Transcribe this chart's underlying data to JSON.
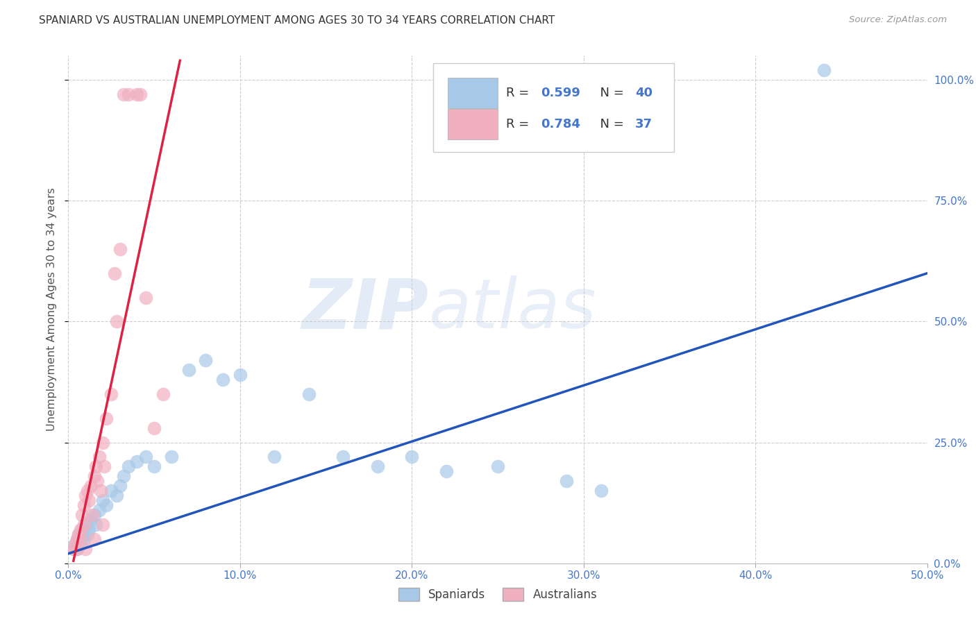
{
  "title": "SPANIARD VS AUSTRALIAN UNEMPLOYMENT AMONG AGES 30 TO 34 YEARS CORRELATION CHART",
  "source": "Source: ZipAtlas.com",
  "ylabel": "Unemployment Among Ages 30 to 34 years",
  "xlim": [
    0.0,
    0.5
  ],
  "ylim": [
    0.0,
    1.05
  ],
  "xticks": [
    0.0,
    0.1,
    0.2,
    0.3,
    0.4,
    0.5
  ],
  "xticklabels": [
    "0.0%",
    "10.0%",
    "20.0%",
    "30.0%",
    "40.0%",
    "50.0%"
  ],
  "yticks_right": [
    0.0,
    0.25,
    0.5,
    0.75,
    1.0
  ],
  "yticklabels_right": [
    "0.0%",
    "25.0%",
    "50.0%",
    "75.0%",
    "100.0%"
  ],
  "blue_color": "#a8c8e8",
  "pink_color": "#f0b0c0",
  "blue_line_color": "#2255bb",
  "pink_line_color": "#dd2244",
  "R_blue": 0.599,
  "N_blue": 40,
  "R_pink": 0.784,
  "N_pink": 37,
  "legend_label_blue": "Spaniards",
  "legend_label_pink": "Australians",
  "watermark_zip": "ZIP",
  "watermark_atlas": "atlas",
  "blue_scatter_x": [
    0.003,
    0.004,
    0.005,
    0.005,
    0.006,
    0.007,
    0.008,
    0.009,
    0.01,
    0.011,
    0.012,
    0.013,
    0.015,
    0.016,
    0.018,
    0.02,
    0.022,
    0.025,
    0.028,
    0.03,
    0.032,
    0.035,
    0.04,
    0.045,
    0.05,
    0.06,
    0.07,
    0.08,
    0.09,
    0.1,
    0.12,
    0.14,
    0.16,
    0.18,
    0.2,
    0.22,
    0.25,
    0.29,
    0.31,
    0.44
  ],
  "blue_scatter_y": [
    0.03,
    0.04,
    0.05,
    0.03,
    0.06,
    0.04,
    0.07,
    0.05,
    0.08,
    0.06,
    0.07,
    0.09,
    0.1,
    0.08,
    0.11,
    0.13,
    0.12,
    0.15,
    0.14,
    0.16,
    0.18,
    0.2,
    0.21,
    0.22,
    0.2,
    0.22,
    0.4,
    0.42,
    0.38,
    0.39,
    0.22,
    0.35,
    0.22,
    0.2,
    0.22,
    0.19,
    0.2,
    0.17,
    0.15,
    1.02
  ],
  "pink_scatter_x": [
    0.003,
    0.004,
    0.005,
    0.005,
    0.006,
    0.007,
    0.007,
    0.008,
    0.009,
    0.009,
    0.01,
    0.01,
    0.011,
    0.012,
    0.013,
    0.014,
    0.015,
    0.015,
    0.016,
    0.017,
    0.018,
    0.019,
    0.02,
    0.02,
    0.021,
    0.022,
    0.025,
    0.027,
    0.028,
    0.03,
    0.032,
    0.035,
    0.04,
    0.042,
    0.045,
    0.05,
    0.055
  ],
  "pink_scatter_y": [
    0.03,
    0.04,
    0.05,
    0.03,
    0.06,
    0.07,
    0.05,
    0.1,
    0.08,
    0.12,
    0.14,
    0.03,
    0.15,
    0.13,
    0.16,
    0.1,
    0.18,
    0.05,
    0.2,
    0.17,
    0.22,
    0.15,
    0.25,
    0.08,
    0.2,
    0.3,
    0.35,
    0.6,
    0.5,
    0.65,
    0.97,
    0.97,
    0.97,
    0.97,
    0.55,
    0.28,
    0.35
  ],
  "blue_line_x": [
    0.0,
    0.5
  ],
  "blue_line_y": [
    0.02,
    0.6
  ],
  "pink_line_x": [
    0.003,
    0.065
  ],
  "pink_line_y": [
    0.005,
    1.04
  ]
}
